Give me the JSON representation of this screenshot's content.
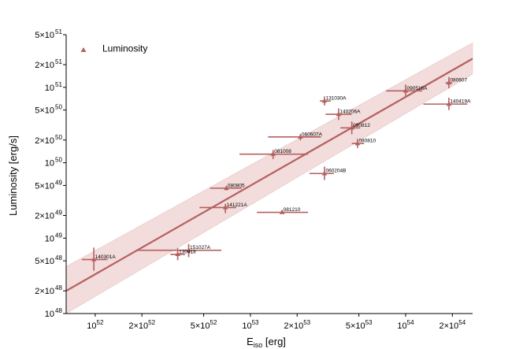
{
  "chart_data": {
    "type": "scatter",
    "title": "",
    "xlabel": "E_iso [erg]",
    "xlabel_main": "E",
    "xlabel_sub": "iso",
    "xlabel_unit": " [erg]",
    "ylabel": "Luminosity [erg/s]",
    "xscale": "log",
    "yscale": "log",
    "xlim": [
      6.5e+51,
      2.7e+54
    ],
    "ylim": [
      1e+48,
      5e+51
    ],
    "legend": {
      "position": "top-left",
      "label": "Luminosity",
      "color": "#b5605f"
    },
    "colors": {
      "series": "#b5605f",
      "fit_line": "#b5605f",
      "band": "#f2dcdc",
      "band_edge": "#e6c3c3"
    },
    "xticks": [
      {
        "value": 1e+52,
        "mant": "10",
        "exp": "52"
      },
      {
        "value": 2e+52,
        "mant": "2×10",
        "exp": "52"
      },
      {
        "value": 5e+52,
        "mant": "5×10",
        "exp": "52"
      },
      {
        "value": 1e+53,
        "mant": "10",
        "exp": "53"
      },
      {
        "value": 2e+53,
        "mant": "2×10",
        "exp": "53"
      },
      {
        "value": 5e+53,
        "mant": "5×10",
        "exp": "53"
      },
      {
        "value": 1e+54,
        "mant": "10",
        "exp": "54"
      },
      {
        "value": 2e+54,
        "mant": "2×10",
        "exp": "54"
      }
    ],
    "yticks": [
      {
        "value": 1e+48,
        "mant": "10",
        "exp": "48"
      },
      {
        "value": 2e+48,
        "mant": "2×10",
        "exp": "48"
      },
      {
        "value": 5e+48,
        "mant": "5×10",
        "exp": "48"
      },
      {
        "value": 1e+49,
        "mant": "10",
        "exp": "49"
      },
      {
        "value": 2e+49,
        "mant": "2×10",
        "exp": "49"
      },
      {
        "value": 5e+49,
        "mant": "5×10",
        "exp": "49"
      },
      {
        "value": 1e+50,
        "mant": "10",
        "exp": "50"
      },
      {
        "value": 2e+50,
        "mant": "2×10",
        "exp": "50"
      },
      {
        "value": 5e+50,
        "mant": "5×10",
        "exp": "50"
      },
      {
        "value": 1e+51,
        "mant": "10",
        "exp": "51"
      },
      {
        "value": 2e+51,
        "mant": "2×10",
        "exp": "51"
      },
      {
        "value": 5e+51,
        "mant": "5×10",
        "exp": "51"
      }
    ],
    "fit": {
      "x": [
        6.5e+51,
        2.7e+54
      ],
      "y": [
        2e+48,
        2.4e+51
      ],
      "band_lower": [
        1e+48,
        1.5e+51
      ],
      "band_upper": [
        4.2e+48,
        3.9e+51
      ]
    },
    "points": [
      {
        "name": "140301A",
        "x": 9.8e+51,
        "y": 5.2e+48,
        "xerr": [
          8.2e+51,
          1.2e+52
        ],
        "yerr": [
          3.7e+48,
          7.5e+48
        ]
      },
      {
        "name": "151027A",
        "x": 4e+52,
        "y": 6.9e+48,
        "xerr": [
          1.85e+52,
          6.5e+52
        ],
        "yerr": [
          5.6e+48,
          8.4e+48
        ]
      },
      {
        "name": "130418",
        "x": 3.4e+52,
        "y": 6.1e+48,
        "xerr": [
          3.05e+52,
          3.8e+52
        ],
        "yerr": [
          5.1e+48,
          7.4e+48
        ]
      },
      {
        "name": "141221A",
        "x": 6.9e+52,
        "y": 2.55e+49,
        "xerr": [
          4.7e+52,
          8.1e+52
        ],
        "yerr": [
          2.15e+49,
          2.85e+49
        ]
      },
      {
        "name": "081210",
        "x": 1.6e+53,
        "y": 2.2e+49,
        "xerr": [
          1.1e+53,
          2.35e+53
        ],
        "yerr": [
          2.1e+49,
          2.35e+49
        ]
      },
      {
        "name": "080805",
        "x": 7e+52,
        "y": 4.6e+49,
        "xerr": [
          5.5e+52,
          8.8e+52
        ],
        "yerr": [
          4.3e+49,
          4.9e+49
        ]
      },
      {
        "name": "060204B",
        "x": 3e+53,
        "y": 7.2e+49,
        "xerr": [
          2.4e+53,
          3.45e+53
        ],
        "yerr": [
          5.9e+49,
          8.9e+49
        ]
      },
      {
        "name": "081008",
        "x": 1.4e+53,
        "y": 1.3e+50,
        "xerr": [
          8.5e+52,
          2.35e+53
        ],
        "yerr": [
          1.12e+50,
          1.48e+50
        ]
      },
      {
        "name": "060607A",
        "x": 2.1e+53,
        "y": 2.2e+50,
        "xerr": [
          1.3e+53,
          2.85e+53
        ],
        "yerr": [
          1.98e+50,
          2.42e+50
        ]
      },
      {
        "name": "080810",
        "x": 4.9e+53,
        "y": 1.8e+50,
        "xerr": [
          4.5e+53,
          5.4e+53
        ],
        "yerr": [
          1.57e+50,
          2.07e+50
        ]
      },
      {
        "name": "090812",
        "x": 4.5e+53,
        "y": 2.9e+50,
        "xerr": [
          3.8e+53,
          5.1e+53
        ],
        "yerr": [
          2.39e+50,
          3.52e+50
        ]
      },
      {
        "name": "140206A",
        "x": 3.7e+53,
        "y": 4.4e+50,
        "xerr": [
          3.05e+53,
          4.5e+53
        ],
        "yerr": [
          3.69e+50,
          5.25e+50
        ]
      },
      {
        "name": "131030A",
        "x": 3e+53,
        "y": 6.6e+50,
        "xerr": [
          2.8e+53,
          3.3e+53
        ],
        "yerr": [
          5.75e+50,
          7.58e+50
        ]
      },
      {
        "name": "090516A",
        "x": 1e+54,
        "y": 9e+50,
        "xerr": [
          7.5e+53,
          1.28e+54
        ],
        "yerr": [
          7.7e+50,
          1.09e+51
        ]
      },
      {
        "name": "080607",
        "x": 1.9e+54,
        "y": 1.15e+51,
        "xerr": [
          1.81e+54,
          2e+54
        ],
        "yerr": [
          9.7e+50,
          1.37e+51
        ]
      },
      {
        "name": "140419A",
        "x": 1.9e+54,
        "y": 6e+50,
        "xerr": [
          1.3e+54,
          2.5e+54
        ],
        "yerr": [
          5e+50,
          7.3e+50
        ]
      }
    ]
  }
}
